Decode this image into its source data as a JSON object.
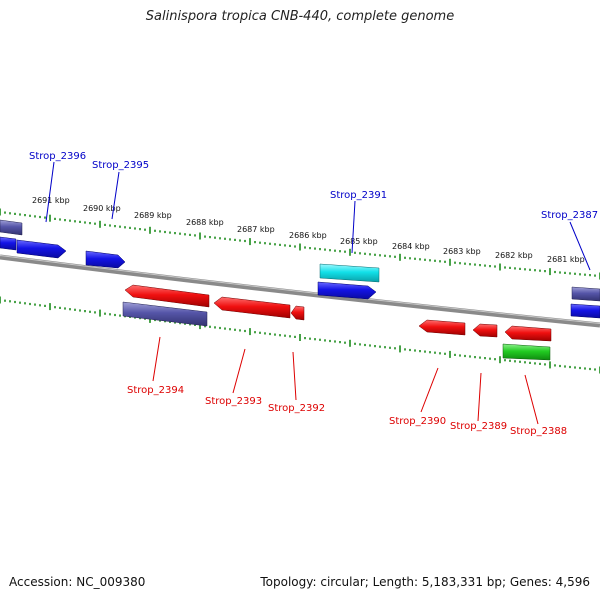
{
  "title": "Salinispora tropica CNB-440, complete genome",
  "footer": {
    "accession": "Accession: NC_009380",
    "summary": "Topology: circular; Length: 5,183,331 bp; Genes: 4,596"
  },
  "colors": {
    "blue_gene": "#1010e0",
    "red_gene": "#f01010",
    "purple_gene": "#5555a8",
    "cyan_gene": "#12e0e8",
    "green_gene": "#22cc22",
    "backbone": "#8a8a8a",
    "tick": "#1a8a1a",
    "blue_label": "#0000c8",
    "red_label": "#dd0000"
  },
  "scale_labels": [
    "2691 kbp",
    "2690 kbp",
    "2689 kbp",
    "2688 kbp",
    "2687 kbp",
    "2686 kbp",
    "2685 kbp",
    "2684 kbp",
    "2683 kbp",
    "2682 kbp",
    "2681 kbp"
  ],
  "gene_labels": {
    "top": [
      "Strop_2396",
      "Strop_2395",
      "Strop_2391",
      "Strop_2387"
    ],
    "bottom": [
      "Strop_2394",
      "Strop_2393",
      "Strop_2392",
      "Strop_2390",
      "Strop_2389",
      "Strop_2388"
    ]
  }
}
